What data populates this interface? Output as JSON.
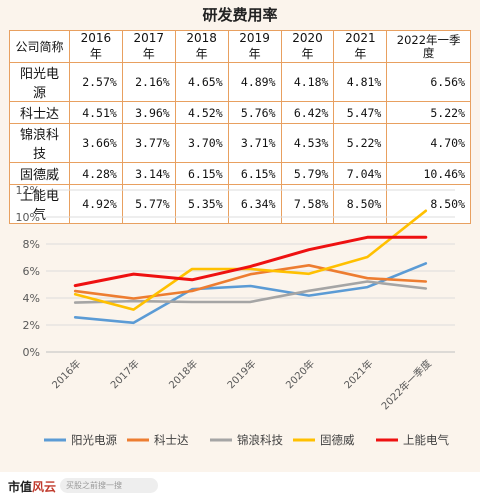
{
  "table": {
    "title": "研发费用率",
    "headers": [
      "公司简称",
      "2016年",
      "2017年",
      "2018年",
      "2019年",
      "2020年",
      "2021年",
      "2022年一季度"
    ],
    "rows": [
      {
        "name": "阳光电源",
        "values": [
          "2.57%",
          "2.16%",
          "4.65%",
          "4.89%",
          "4.18%",
          "4.81%",
          "6.56%"
        ]
      },
      {
        "name": "科士达",
        "values": [
          "4.51%",
          "3.96%",
          "4.52%",
          "5.76%",
          "6.42%",
          "5.47%",
          "5.22%"
        ]
      },
      {
        "name": "锦浪科技",
        "values": [
          "3.66%",
          "3.77%",
          "3.70%",
          "3.71%",
          "4.53%",
          "5.22%",
          "4.70%"
        ]
      },
      {
        "name": "固德威",
        "values": [
          "4.28%",
          "3.14%",
          "6.15%",
          "6.15%",
          "5.79%",
          "7.04%",
          "10.46%"
        ]
      },
      {
        "name": "上能电气",
        "values": [
          "4.92%",
          "5.77%",
          "5.35%",
          "6.34%",
          "7.58%",
          "8.50%",
          "8.50%"
        ]
      }
    ]
  },
  "chart_data": {
    "type": "line",
    "categories": [
      "2016年",
      "2017年",
      "2018年",
      "2019年",
      "2020年",
      "2021年",
      "2022年一季度"
    ],
    "ylim": [
      0,
      12
    ],
    "yticks": [
      "0%",
      "2%",
      "4%",
      "6%",
      "8%",
      "10%",
      "12%"
    ],
    "grid": true,
    "legend_position": "bottom",
    "series": [
      {
        "name": "阳光电源",
        "color": "#5b9bd5",
        "values": [
          2.57,
          2.16,
          4.65,
          4.89,
          4.18,
          4.81,
          6.56
        ]
      },
      {
        "name": "科士达",
        "color": "#ed7d31",
        "values": [
          4.51,
          3.96,
          4.52,
          5.76,
          6.42,
          5.47,
          5.22
        ]
      },
      {
        "name": "锦浪科技",
        "color": "#a5a5a5",
        "values": [
          3.66,
          3.77,
          3.7,
          3.71,
          4.53,
          5.22,
          4.7
        ]
      },
      {
        "name": "固德威",
        "color": "#ffc000",
        "values": [
          4.28,
          3.14,
          6.15,
          6.15,
          5.79,
          7.04,
          10.46
        ]
      },
      {
        "name": "上能电气",
        "color": "#ee1111",
        "values": [
          4.92,
          5.77,
          5.35,
          6.34,
          7.58,
          8.5,
          8.5
        ]
      }
    ]
  },
  "footer": {
    "brand_a": "市值",
    "brand_b": "风云",
    "search_placeholder": "买股之前搜一搜"
  }
}
